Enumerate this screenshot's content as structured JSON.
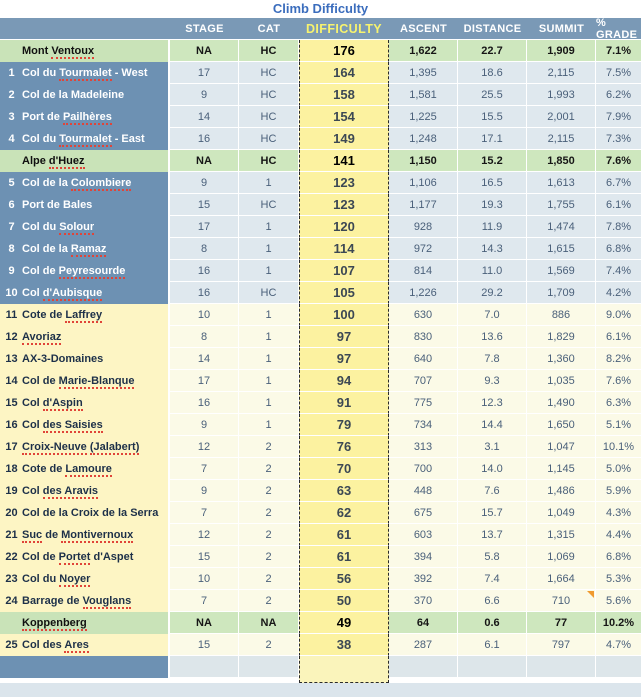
{
  "title": "Climb Difficulty",
  "columns": [
    "STAGE",
    "CAT",
    "DIFFICULTY",
    "ASCENT",
    "DISTANCE",
    "SUMMIT",
    "% GRADE"
  ],
  "rows": [
    {
      "num": "",
      "name": "Mont Ventoux",
      "squiggle": [
        "Ventoux"
      ],
      "theme": "green",
      "stage": "NA",
      "cat": "HC",
      "difficulty": "176",
      "ascent": "1,622",
      "distance": "22.7",
      "summit": "1,909",
      "grade": "7.1%"
    },
    {
      "num": "1",
      "name": "Col du Tourmalet - West",
      "squiggle": [
        "Tourmalet"
      ],
      "theme": "blue",
      "stage": "17",
      "cat": "HC",
      "difficulty": "164",
      "ascent": "1,395",
      "distance": "18.6",
      "summit": "2,115",
      "grade": "7.5%"
    },
    {
      "num": "2",
      "name": "Col de la Madeleine",
      "squiggle": [],
      "theme": "blue",
      "stage": "9",
      "cat": "HC",
      "difficulty": "158",
      "ascent": "1,581",
      "distance": "25.5",
      "summit": "1,993",
      "grade": "6.2%"
    },
    {
      "num": "3",
      "name": "Port de Pailhères",
      "squiggle": [
        "Pailhères"
      ],
      "theme": "blue",
      "stage": "14",
      "cat": "HC",
      "difficulty": "154",
      "ascent": "1,225",
      "distance": "15.5",
      "summit": "2,001",
      "grade": "7.9%"
    },
    {
      "num": "4",
      "name": "Col du Tourmalet - East",
      "squiggle": [
        "Tourmalet"
      ],
      "theme": "blue",
      "stage": "16",
      "cat": "HC",
      "difficulty": "149",
      "ascent": "1,248",
      "distance": "17.1",
      "summit": "2,115",
      "grade": "7.3%"
    },
    {
      "num": "",
      "name": "Alpe d'Huez",
      "squiggle": [
        "d'Huez"
      ],
      "theme": "green",
      "stage": "NA",
      "cat": "HC",
      "difficulty": "141",
      "ascent": "1,150",
      "distance": "15.2",
      "summit": "1,850",
      "grade": "7.6%"
    },
    {
      "num": "5",
      "name": "Col de la Colombiere",
      "squiggle": [
        "Colombiere"
      ],
      "theme": "blue",
      "stage": "9",
      "cat": "1",
      "difficulty": "123",
      "ascent": "1,106",
      "distance": "16.5",
      "summit": "1,613",
      "grade": "6.7%"
    },
    {
      "num": "6",
      "name": "Port de Bales",
      "squiggle": [],
      "theme": "blue",
      "stage": "15",
      "cat": "HC",
      "difficulty": "123",
      "ascent": "1,177",
      "distance": "19.3",
      "summit": "1,755",
      "grade": "6.1%"
    },
    {
      "num": "7",
      "name": "Col du Solour",
      "squiggle": [
        "Solour"
      ],
      "theme": "blue",
      "stage": "17",
      "cat": "1",
      "difficulty": "120",
      "ascent": "928",
      "distance": "11.9",
      "summit": "1,474",
      "grade": "7.8%"
    },
    {
      "num": "8",
      "name": "Col de la Ramaz",
      "squiggle": [
        "Ramaz"
      ],
      "theme": "blue",
      "stage": "8",
      "cat": "1",
      "difficulty": "114",
      "ascent": "972",
      "distance": "14.3",
      "summit": "1,615",
      "grade": "6.8%"
    },
    {
      "num": "9",
      "name": "Col de Peyresourde",
      "squiggle": [
        "Peyresourde"
      ],
      "theme": "blue",
      "stage": "16",
      "cat": "1",
      "difficulty": "107",
      "ascent": "814",
      "distance": "11.0",
      "summit": "1,569",
      "grade": "7.4%"
    },
    {
      "num": "10",
      "name": "Col d'Aubisque",
      "squiggle": [
        "d'Aubisque"
      ],
      "theme": "blue",
      "stage": "16",
      "cat": "HC",
      "difficulty": "105",
      "ascent": "1,226",
      "distance": "29.2",
      "summit": "1,709",
      "grade": "4.2%"
    },
    {
      "num": "11",
      "name": "Cote de Laffrey",
      "squiggle": [
        "Laffrey"
      ],
      "theme": "yellow",
      "stage": "10",
      "cat": "1",
      "difficulty": "100",
      "ascent": "630",
      "distance": "7.0",
      "summit": "886",
      "grade": "9.0%"
    },
    {
      "num": "12",
      "name": "Avoriaz",
      "squiggle": [
        "Avoriaz"
      ],
      "theme": "yellow",
      "stage": "8",
      "cat": "1",
      "difficulty": "97",
      "ascent": "830",
      "distance": "13.6",
      "summit": "1,829",
      "grade": "6.1%"
    },
    {
      "num": "13",
      "name": "AX-3-Domaines",
      "squiggle": [],
      "theme": "yellow",
      "stage": "14",
      "cat": "1",
      "difficulty": "97",
      "ascent": "640",
      "distance": "7.8",
      "summit": "1,360",
      "grade": "8.2%"
    },
    {
      "num": "14",
      "name": "Col de Marie-Blanque",
      "squiggle": [
        "Marie-Blanque"
      ],
      "theme": "yellow",
      "stage": "17",
      "cat": "1",
      "difficulty": "94",
      "ascent": "707",
      "distance": "9.3",
      "summit": "1,035",
      "grade": "7.6%"
    },
    {
      "num": "15",
      "name": "Col d'Aspin",
      "squiggle": [
        "d'Aspin"
      ],
      "theme": "yellow",
      "stage": "16",
      "cat": "1",
      "difficulty": "91",
      "ascent": "775",
      "distance": "12.3",
      "summit": "1,490",
      "grade": "6.3%"
    },
    {
      "num": "16",
      "name": "Col des Saisies",
      "squiggle": [
        "des Saisies"
      ],
      "theme": "yellow",
      "stage": "9",
      "cat": "1",
      "difficulty": "79",
      "ascent": "734",
      "distance": "14.4",
      "summit": "1,650",
      "grade": "5.1%"
    },
    {
      "num": "17",
      "name": "Croix-Neuve (Jalabert)",
      "squiggle": [
        "Croix-Neuve",
        "(Jalabert)"
      ],
      "theme": "yellow",
      "stage": "12",
      "cat": "2",
      "difficulty": "76",
      "ascent": "313",
      "distance": "3.1",
      "summit": "1,047",
      "grade": "10.1%"
    },
    {
      "num": "18",
      "name": "Cote de Lamoure",
      "squiggle": [
        "Lamoure"
      ],
      "theme": "yellow",
      "stage": "7",
      "cat": "2",
      "difficulty": "70",
      "ascent": "700",
      "distance": "14.0",
      "summit": "1,145",
      "grade": "5.0%"
    },
    {
      "num": "19",
      "name": "Col des Aravis",
      "squiggle": [
        "des Aravis"
      ],
      "theme": "yellow",
      "stage": "9",
      "cat": "2",
      "difficulty": "63",
      "ascent": "448",
      "distance": "7.6",
      "summit": "1,486",
      "grade": "5.9%"
    },
    {
      "num": "20",
      "name": "Col de la Croix de la Serra",
      "squiggle": [],
      "theme": "yellow",
      "stage": "7",
      "cat": "2",
      "difficulty": "62",
      "ascent": "675",
      "distance": "15.7",
      "summit": "1,049",
      "grade": "4.3%"
    },
    {
      "num": "21",
      "name": "Suc de Montivernoux",
      "squiggle": [
        "Suc",
        "Montivernoux"
      ],
      "theme": "yellow",
      "stage": "12",
      "cat": "2",
      "difficulty": "61",
      "ascent": "603",
      "distance": "13.7",
      "summit": "1,315",
      "grade": "4.4%"
    },
    {
      "num": "22",
      "name": "Col de Portet d'Aspet",
      "squiggle": [
        "Portet"
      ],
      "theme": "yellow",
      "stage": "15",
      "cat": "2",
      "difficulty": "61",
      "ascent": "394",
      "distance": "5.8",
      "summit": "1,069",
      "grade": "6.8%"
    },
    {
      "num": "23",
      "name": "Col du Noyer",
      "squiggle": [
        "Noyer"
      ],
      "theme": "yellow",
      "stage": "10",
      "cat": "2",
      "difficulty": "56",
      "ascent": "392",
      "distance": "7.4",
      "summit": "1,664",
      "grade": "5.3%"
    },
    {
      "num": "24",
      "name": "Barrage de Vouglans",
      "squiggle": [
        "Vouglans"
      ],
      "theme": "yellow",
      "stage": "7",
      "cat": "2",
      "difficulty": "50",
      "ascent": "370",
      "distance": "6.6",
      "summit": "710",
      "grade": "5.6%",
      "marker": "summit"
    },
    {
      "num": "",
      "name": "Koppenberg",
      "squiggle": [
        "Koppenberg"
      ],
      "theme": "green",
      "stage": "NA",
      "cat": "NA",
      "difficulty": "49",
      "ascent": "64",
      "distance": "0.6",
      "summit": "77",
      "grade": "10.2%"
    },
    {
      "num": "25",
      "name": "Col des Ares",
      "squiggle": [
        "Ares"
      ],
      "theme": "yellow",
      "stage": "15",
      "cat": "2",
      "difficulty": "38",
      "ascent": "287",
      "distance": "6.1",
      "summit": "797",
      "grade": "4.7%"
    },
    {
      "empty": true
    }
  ],
  "colors": {
    "title_text": "#3b6dbd",
    "header_bg": "#7a99b6",
    "header_text": "#ffffff",
    "difficulty_header_text": "#f7f36e",
    "blue_row_name_bg": "#6d91b3",
    "blue_row_cell_bg": "#dfe8ee",
    "green_row_name_bg": "#c9e3b8",
    "green_row_cell_bg": "#cee7be",
    "yellow_row_name_bg": "#fdf5c4",
    "yellow_row_cell_bg": "#fbfae7",
    "difficulty_cell_bg": "#fcf2a0",
    "value_text": "#4a607a",
    "squiggle_red": "#e04438",
    "comment_marker_orange": "#f09a2f",
    "footer_bar_bg": "#dbe5ec"
  }
}
